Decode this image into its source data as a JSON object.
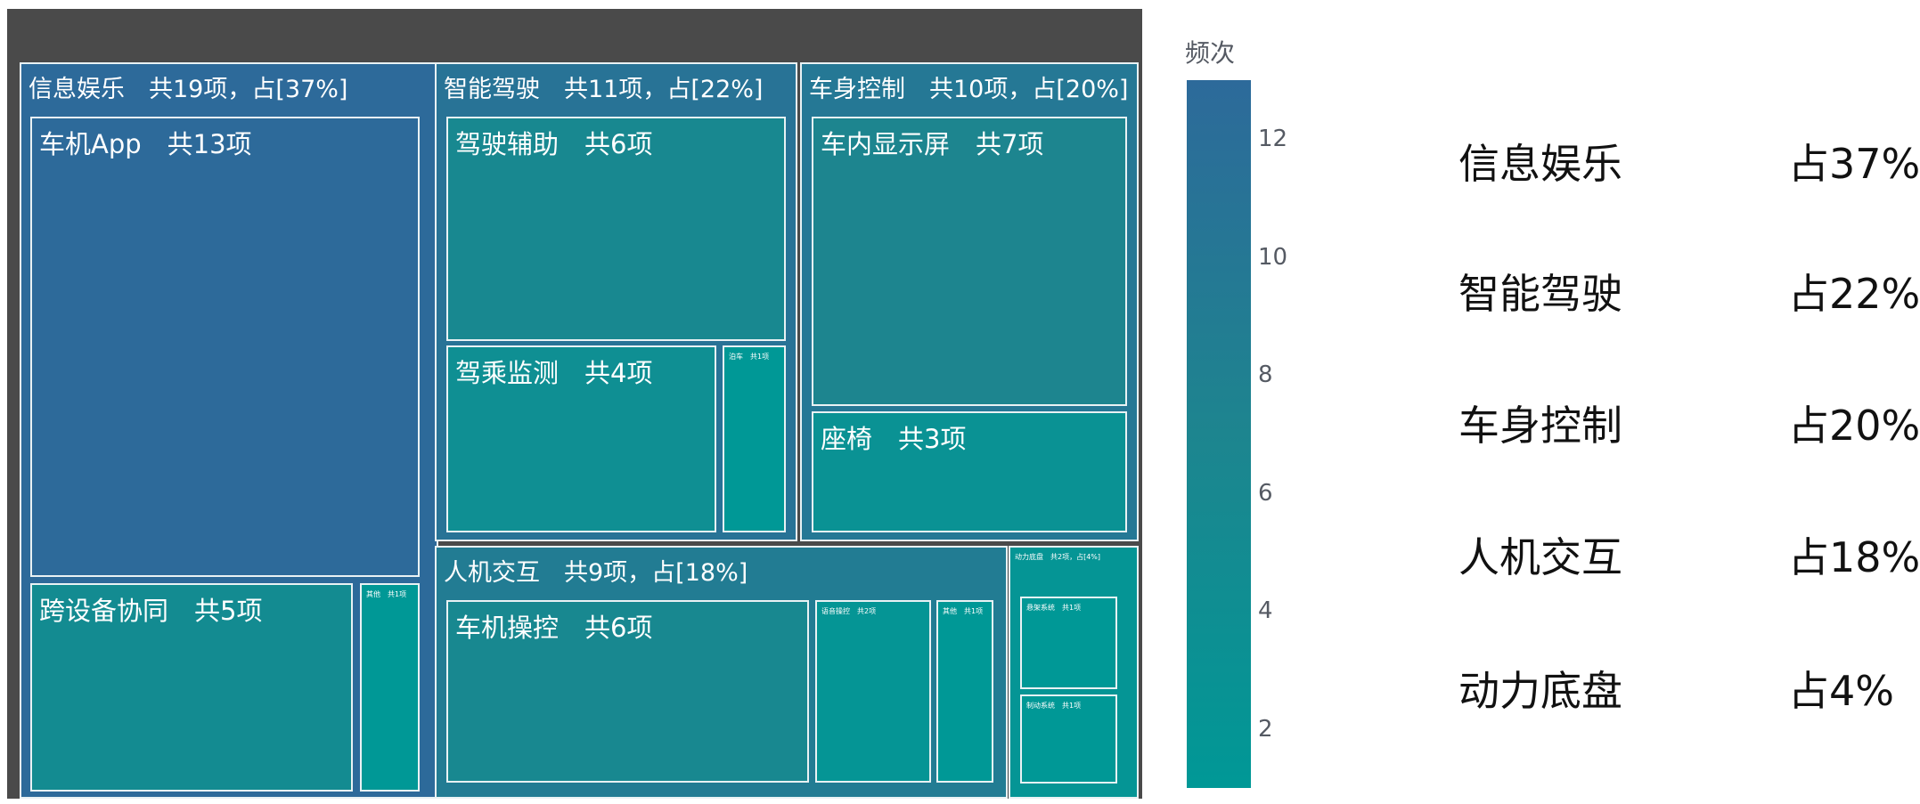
{
  "chart_data": {
    "type": "treemap",
    "colorbar": {
      "title": "频次",
      "range": [
        1,
        13
      ],
      "ticks": [
        "2",
        "4",
        "6",
        "8",
        "10",
        "12"
      ],
      "colors": [
        "#009896",
        "#1d858f",
        "#2d6a9a"
      ]
    },
    "groups": [
      {
        "id": "g1",
        "label": "信息娱乐　共19项，占[37%]",
        "value": 19,
        "children": [
          {
            "id": "g1c1",
            "label": "车机App　共13项",
            "value": 13
          },
          {
            "id": "g1c2",
            "label": "跨设备协同　共5项",
            "value": 5
          },
          {
            "id": "g1c3",
            "label": "其他　共1项",
            "value": 1
          }
        ]
      },
      {
        "id": "g2",
        "label": "智能驾驶　共11项，占[22%]",
        "value": 11,
        "children": [
          {
            "id": "g2c1",
            "label": "驾驶辅助　共6项",
            "value": 6
          },
          {
            "id": "g2c2",
            "label": "驾乘监测　共4项",
            "value": 4
          },
          {
            "id": "g2c3",
            "label": "泊车　共1项",
            "value": 1
          }
        ]
      },
      {
        "id": "g3",
        "label": "车身控制　共10项，占[20%]",
        "value": 10,
        "children": [
          {
            "id": "g3c1",
            "label": "车内显示屏　共7项",
            "value": 7
          },
          {
            "id": "g3c2",
            "label": "座椅　共3项",
            "value": 3
          }
        ]
      },
      {
        "id": "g4",
        "label": "人机交互　共9项，占[18%]",
        "value": 9,
        "children": [
          {
            "id": "g4c1",
            "label": "车机操控　共6项",
            "value": 6
          },
          {
            "id": "g4c2",
            "label": "语音操控　共2项",
            "value": 2
          },
          {
            "id": "g4c3",
            "label": "其他　共1项",
            "value": 1
          }
        ]
      },
      {
        "id": "g5",
        "label": "动力底盘　共2项，占[4%]",
        "value": 2,
        "children": [
          {
            "id": "g5c1",
            "label": "悬架系统　共1项",
            "value": 1
          },
          {
            "id": "g5c2",
            "label": "制动系统　共1项",
            "value": 1
          }
        ]
      }
    ]
  },
  "legend": [
    {
      "name": "信息娱乐",
      "pct": "占37%"
    },
    {
      "name": "智能驾驶",
      "pct": "占22%"
    },
    {
      "name": "车身控制",
      "pct": "占20%"
    },
    {
      "name": "人机交互",
      "pct": "占18%"
    },
    {
      "name": "动力底盘",
      "pct": "占4%"
    }
  ]
}
